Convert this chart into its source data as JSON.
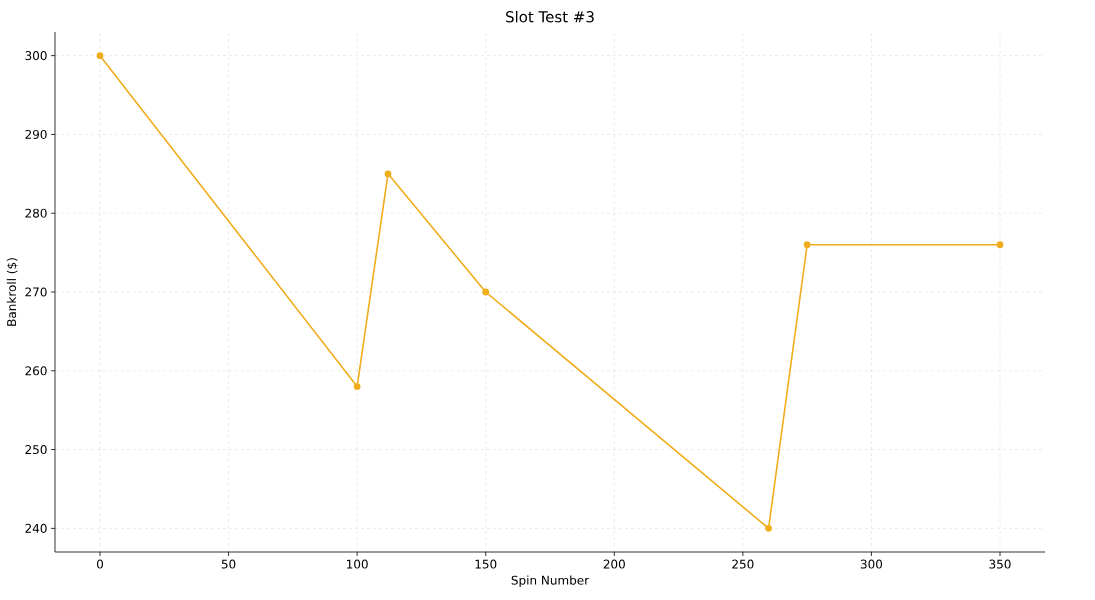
{
  "chart_data": {
    "type": "line",
    "title": "Slot Test #3",
    "xlabel": "Spin Number",
    "ylabel": "Bankroll ($)",
    "x": [
      0,
      100,
      112,
      150,
      260,
      275,
      350
    ],
    "series": [
      {
        "color": "#f0ad1c",
        "values": [
          300,
          258,
          285,
          270,
          240,
          276,
          276
        ]
      }
    ],
    "xlim": [
      -17.5,
      367.5
    ],
    "ylim": [
      237,
      303
    ],
    "xticks": [
      0,
      50,
      100,
      150,
      200,
      250,
      300,
      350
    ],
    "yticks": [
      240,
      250,
      260,
      270,
      280,
      290,
      300
    ],
    "grid": true,
    "marker": "circle",
    "line_style": "solid"
  }
}
